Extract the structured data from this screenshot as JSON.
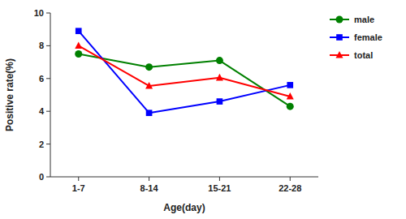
{
  "chart_data": {
    "type": "line",
    "xlabel": "Age(day)",
    "ylabel": "Positive rate(%)",
    "categories": [
      "1-7",
      "8-14",
      "15-21",
      "22-28"
    ],
    "series": [
      {
        "name": "male",
        "color": "#008000",
        "marker": "circle",
        "values": [
          7.5,
          6.7,
          7.1,
          4.3
        ]
      },
      {
        "name": "female",
        "color": "#0000ff",
        "marker": "square",
        "values": [
          8.9,
          3.9,
          4.6,
          5.6
        ]
      },
      {
        "name": "total",
        "color": "#ff0000",
        "marker": "triangle",
        "values": [
          8.0,
          5.55,
          6.05,
          4.9
        ]
      }
    ],
    "ylim": [
      0,
      10
    ],
    "yticks": [
      0,
      2,
      4,
      6,
      8,
      10
    ],
    "grid": false,
    "legend": "right"
  }
}
